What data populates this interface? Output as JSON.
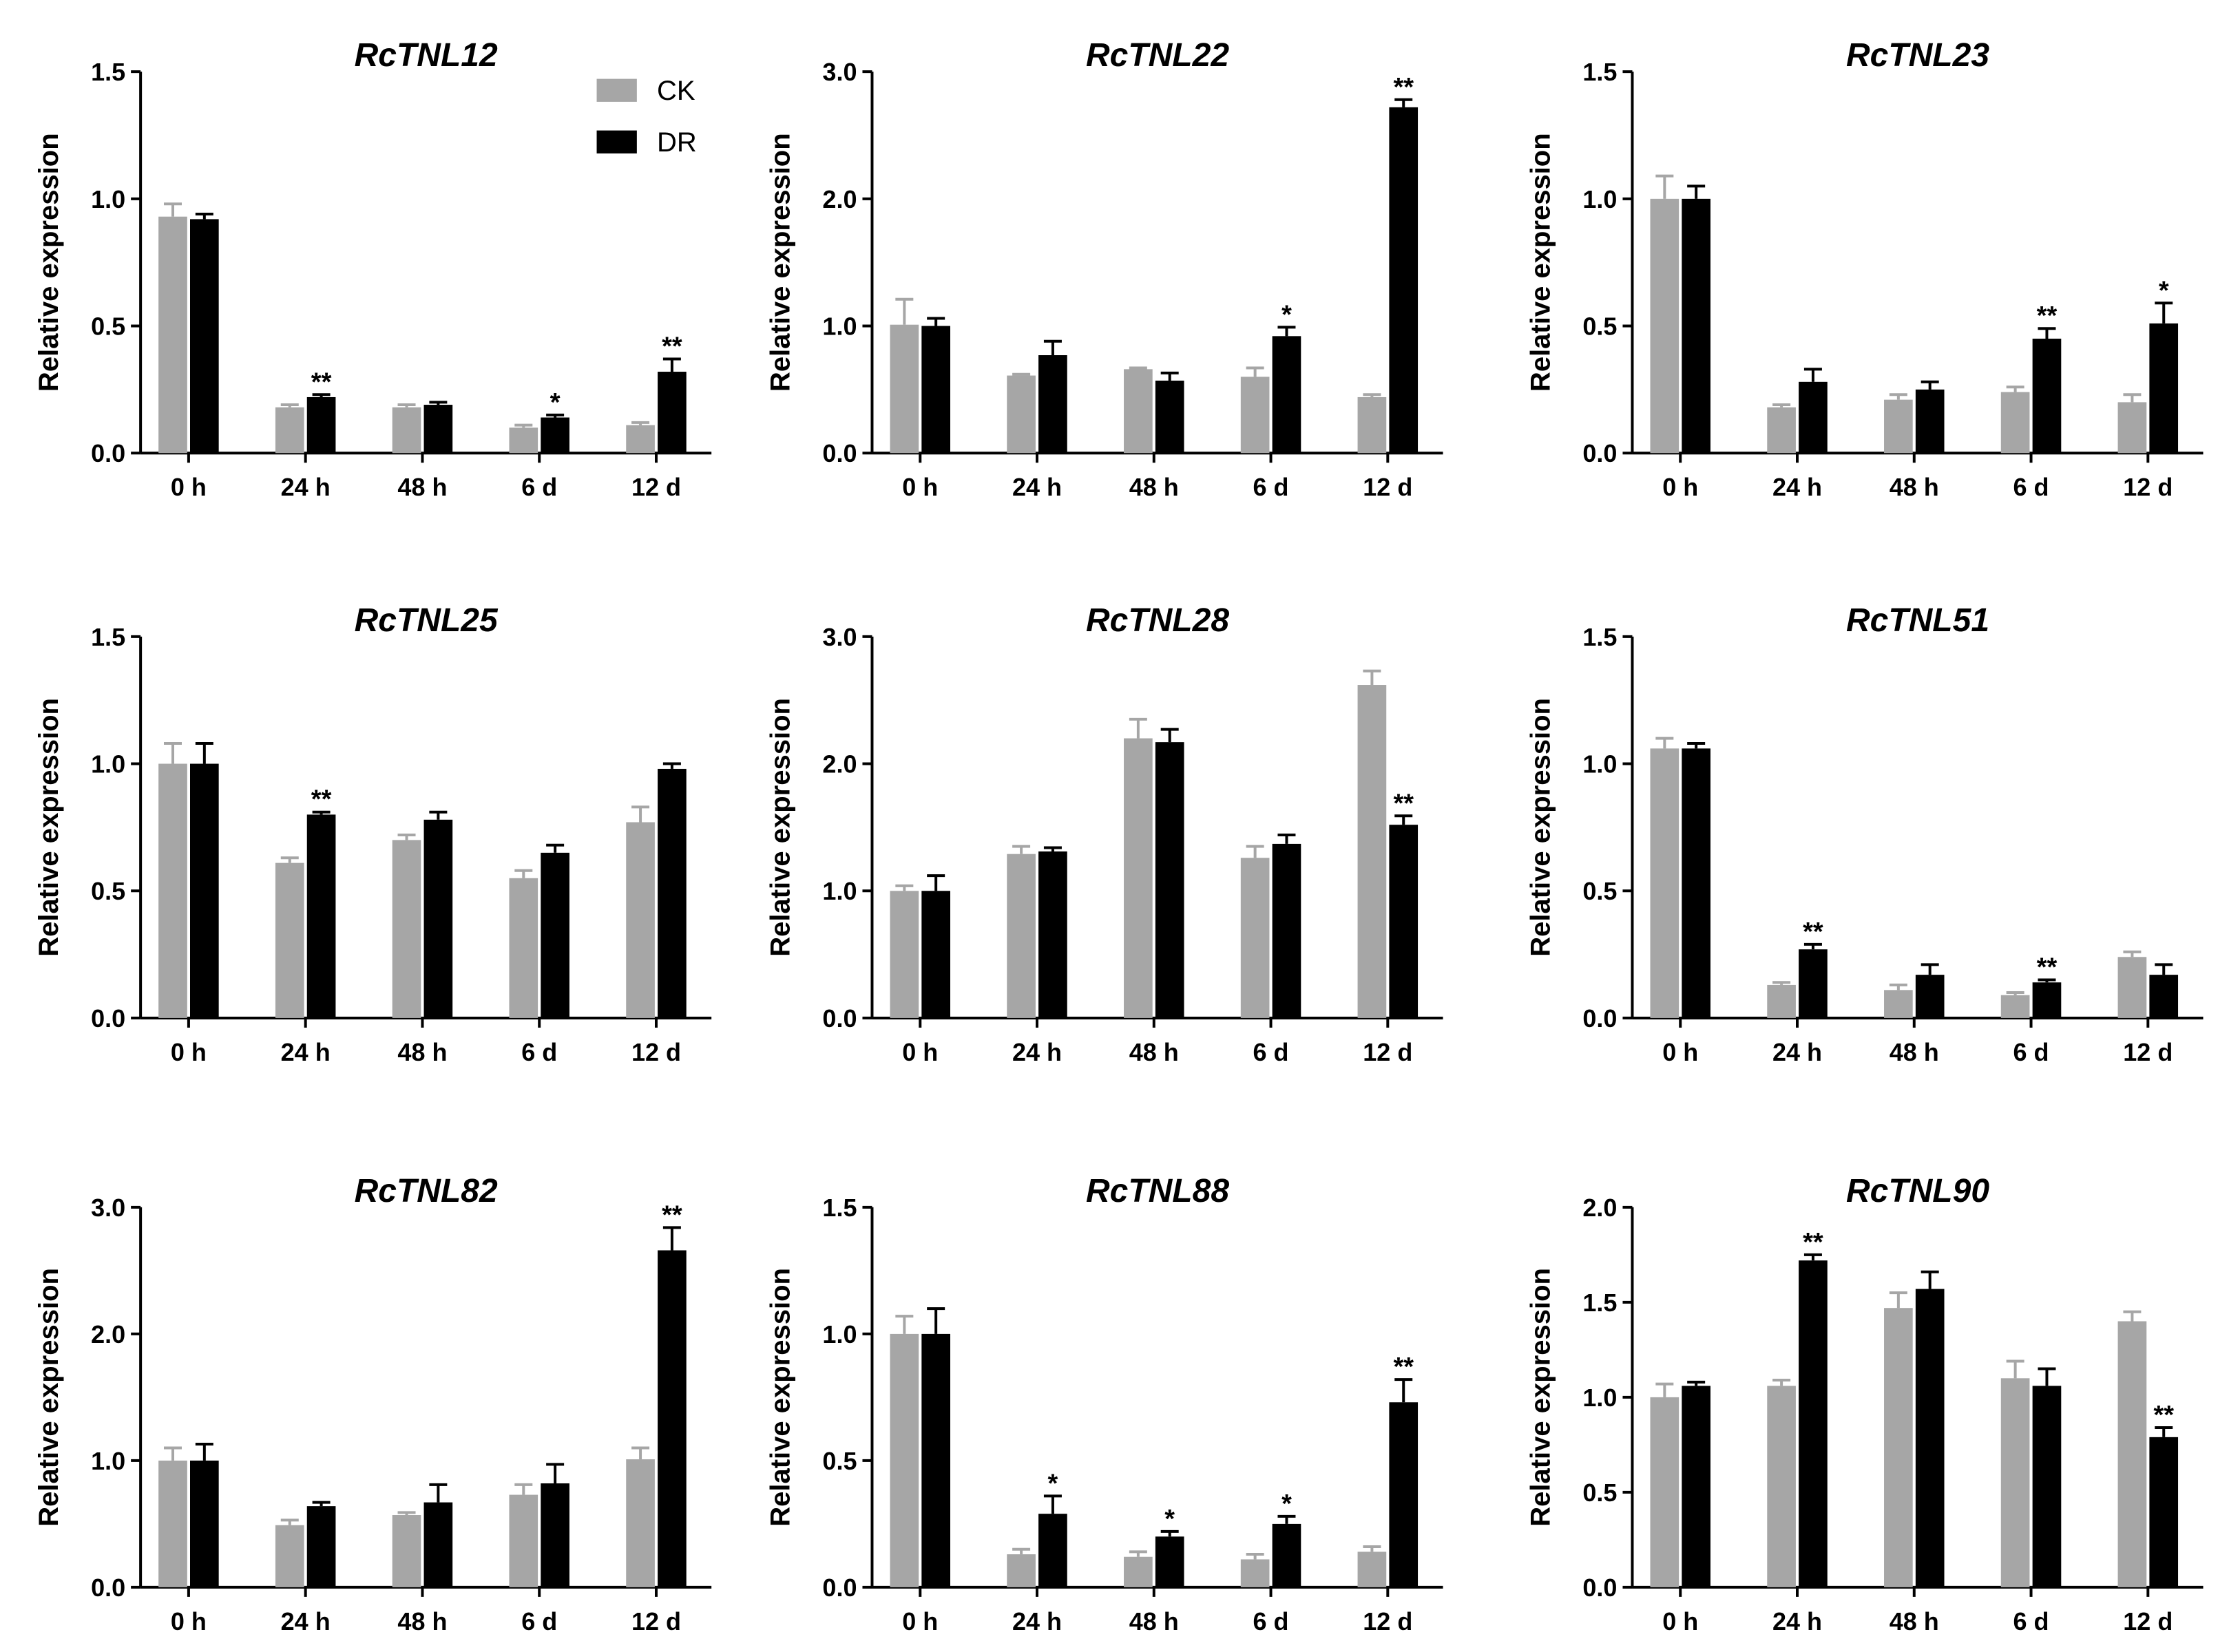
{
  "colors": {
    "CK": "#a6a6a6",
    "DR": "#000000",
    "axis": "#000000"
  },
  "legend": [
    {
      "name": "CK",
      "color": "#a6a6a6"
    },
    {
      "name": "DR",
      "color": "#000000"
    }
  ],
  "chart_data": [
    {
      "type": "bar",
      "title": "RcTNL12",
      "ylabel": "Relative expression",
      "ylim": [
        0,
        1.5
      ],
      "yticks": [
        "0.0",
        "0.5",
        "1.0",
        "1.5"
      ],
      "categories": [
        "0 h",
        "24 h",
        "48 h",
        "6 d",
        "12 d"
      ],
      "series": [
        {
          "name": "CK",
          "values": [
            0.93,
            0.18,
            0.18,
            0.1,
            0.11
          ],
          "errors": [
            0.05,
            0.01,
            0.01,
            0.01,
            0.01
          ]
        },
        {
          "name": "DR",
          "values": [
            0.92,
            0.22,
            0.19,
            0.14,
            0.32
          ],
          "errors": [
            0.02,
            0.01,
            0.01,
            0.01,
            0.05
          ]
        }
      ],
      "significance": [
        "",
        "**",
        "",
        "*",
        "**"
      ]
    },
    {
      "type": "bar",
      "title": "RcTNL22",
      "ylabel": "Relative expression",
      "ylim": [
        0,
        3.0
      ],
      "yticks": [
        "0.0",
        "1.0",
        "2.0",
        "3.0"
      ],
      "categories": [
        "0 h",
        "24 h",
        "48 h",
        "6 d",
        "12 d"
      ],
      "series": [
        {
          "name": "CK",
          "values": [
            1.01,
            0.61,
            0.66,
            0.6,
            0.44
          ],
          "errors": [
            0.2,
            0.01,
            0.01,
            0.07,
            0.02
          ]
        },
        {
          "name": "DR",
          "values": [
            1.0,
            0.77,
            0.57,
            0.92,
            2.72
          ],
          "errors": [
            0.06,
            0.11,
            0.06,
            0.07,
            0.06
          ]
        }
      ],
      "significance": [
        "",
        "",
        "",
        "*",
        "**"
      ]
    },
    {
      "type": "bar",
      "title": "RcTNL23",
      "ylabel": "Relative expression",
      "ylim": [
        0,
        1.5
      ],
      "yticks": [
        "0.0",
        "0.5",
        "1.0",
        "1.5"
      ],
      "categories": [
        "0 h",
        "24 h",
        "48 h",
        "6 d",
        "12 d"
      ],
      "series": [
        {
          "name": "CK",
          "values": [
            1.0,
            0.18,
            0.21,
            0.24,
            0.2
          ],
          "errors": [
            0.09,
            0.01,
            0.02,
            0.02,
            0.03
          ]
        },
        {
          "name": "DR",
          "values": [
            1.0,
            0.28,
            0.25,
            0.45,
            0.51
          ],
          "errors": [
            0.05,
            0.05,
            0.03,
            0.04,
            0.08
          ]
        }
      ],
      "significance": [
        "",
        "",
        "",
        "**",
        "*"
      ]
    },
    {
      "type": "bar",
      "title": "RcTNL25",
      "ylabel": "Relative expression",
      "ylim": [
        0,
        1.5
      ],
      "yticks": [
        "0.0",
        "0.5",
        "1.0",
        "1.5"
      ],
      "categories": [
        "0 h",
        "24 h",
        "48 h",
        "6 d",
        "12 d"
      ],
      "series": [
        {
          "name": "CK",
          "values": [
            1.0,
            0.61,
            0.7,
            0.55,
            0.77
          ],
          "errors": [
            0.08,
            0.02,
            0.02,
            0.03,
            0.06
          ]
        },
        {
          "name": "DR",
          "values": [
            1.0,
            0.8,
            0.78,
            0.65,
            0.98
          ],
          "errors": [
            0.08,
            0.01,
            0.03,
            0.03,
            0.02
          ]
        }
      ],
      "significance": [
        "",
        "**",
        "",
        "",
        ""
      ]
    },
    {
      "type": "bar",
      "title": "RcTNL28",
      "ylabel": "Relative expression",
      "ylim": [
        0,
        3.0
      ],
      "yticks": [
        "0.0",
        "1.0",
        "2.0",
        "3.0"
      ],
      "categories": [
        "0 h",
        "24 h",
        "48 h",
        "6 d",
        "12 d"
      ],
      "series": [
        {
          "name": "CK",
          "values": [
            1.0,
            1.29,
            2.2,
            1.26,
            2.62
          ],
          "errors": [
            0.04,
            0.06,
            0.15,
            0.09,
            0.11
          ]
        },
        {
          "name": "DR",
          "values": [
            1.0,
            1.31,
            2.17,
            1.37,
            1.52
          ],
          "errors": [
            0.12,
            0.03,
            0.1,
            0.07,
            0.07
          ]
        }
      ],
      "significance": [
        "",
        "",
        "",
        "",
        "**"
      ]
    },
    {
      "type": "bar",
      "title": "RcTNL51",
      "ylabel": "Relative expression",
      "ylim": [
        0,
        1.5
      ],
      "yticks": [
        "0.0",
        "0.5",
        "1.0",
        "1.5"
      ],
      "categories": [
        "0 h",
        "24 h",
        "48 h",
        "6 d",
        "12 d"
      ],
      "series": [
        {
          "name": "CK",
          "values": [
            1.06,
            0.13,
            0.11,
            0.09,
            0.24
          ],
          "errors": [
            0.04,
            0.01,
            0.02,
            0.01,
            0.02
          ]
        },
        {
          "name": "DR",
          "values": [
            1.06,
            0.27,
            0.17,
            0.14,
            0.17
          ],
          "errors": [
            0.02,
            0.02,
            0.04,
            0.01,
            0.04
          ]
        }
      ],
      "significance": [
        "",
        "**",
        "",
        "**",
        ""
      ]
    },
    {
      "type": "bar",
      "title": "RcTNL82",
      "ylabel": "Relative expression",
      "ylim": [
        0,
        3.0
      ],
      "yticks": [
        "0.0",
        "1.0",
        "2.0",
        "3.0"
      ],
      "categories": [
        "0 h",
        "24 h",
        "48 h",
        "6 d",
        "12 d"
      ],
      "series": [
        {
          "name": "CK",
          "values": [
            1.0,
            0.49,
            0.57,
            0.73,
            1.01
          ],
          "errors": [
            0.1,
            0.04,
            0.02,
            0.08,
            0.09
          ]
        },
        {
          "name": "DR",
          "values": [
            1.0,
            0.64,
            0.67,
            0.82,
            2.66
          ],
          "errors": [
            0.13,
            0.03,
            0.14,
            0.15,
            0.18
          ]
        }
      ],
      "significance": [
        "",
        "",
        "",
        "",
        "**"
      ]
    },
    {
      "type": "bar",
      "title": "RcTNL88",
      "ylabel": "Relative expression",
      "ylim": [
        0,
        1.5
      ],
      "yticks": [
        "0.0",
        "0.5",
        "1.0",
        "1.5"
      ],
      "categories": [
        "0 h",
        "24 h",
        "48 h",
        "6 d",
        "12 d"
      ],
      "series": [
        {
          "name": "CK",
          "values": [
            1.0,
            0.13,
            0.12,
            0.11,
            0.14
          ],
          "errors": [
            0.07,
            0.02,
            0.02,
            0.02,
            0.02
          ]
        },
        {
          "name": "DR",
          "values": [
            1.0,
            0.29,
            0.2,
            0.25,
            0.73
          ],
          "errors": [
            0.1,
            0.07,
            0.02,
            0.03,
            0.09
          ]
        }
      ],
      "significance": [
        "",
        "*",
        "*",
        "*",
        "**"
      ]
    },
    {
      "type": "bar",
      "title": "RcTNL90",
      "ylabel": "Relative expression",
      "ylim": [
        0,
        2.0
      ],
      "yticks": [
        "0.0",
        "0.5",
        "1.0",
        "1.5",
        "2.0"
      ],
      "categories": [
        "0 h",
        "24 h",
        "48 h",
        "6 d",
        "12 d"
      ],
      "series": [
        {
          "name": "CK",
          "values": [
            1.0,
            1.06,
            1.47,
            1.1,
            1.4
          ],
          "errors": [
            0.07,
            0.03,
            0.08,
            0.09,
            0.05
          ]
        },
        {
          "name": "DR",
          "values": [
            1.06,
            1.72,
            1.57,
            1.06,
            0.79
          ],
          "errors": [
            0.02,
            0.03,
            0.09,
            0.09,
            0.05
          ]
        }
      ],
      "significance": [
        "",
        "**",
        "",
        "",
        "**"
      ]
    }
  ]
}
